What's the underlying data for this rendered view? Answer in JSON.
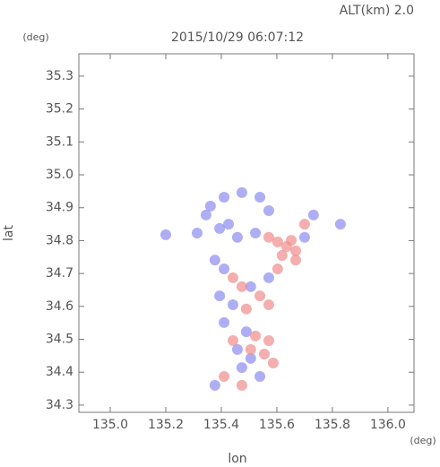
{
  "annotation": "ALT(km) 2.0",
  "chart_data": {
    "type": "scatter",
    "title": "2015/10/29 06:07:12",
    "x_label": "lon",
    "y_label": "lat",
    "x_unit": "(deg)",
    "y_unit": "(deg)",
    "xlim": [
      134.887,
      136.094
    ],
    "ylim": [
      34.278,
      35.368
    ],
    "xticks": [
      {
        "value": 135,
        "label": "135.0"
      },
      135.2,
      135.4,
      135.6,
      135.8,
      {
        "value": 136,
        "label": "136.0"
      }
    ],
    "yticks": [
      34.3,
      34.4,
      34.5,
      34.6,
      34.7,
      34.8,
      34.9,
      {
        "value": 35,
        "label": "35.0"
      },
      35.1,
      35.2,
      35.3
    ],
    "series": [
      {
        "color": "#8c8cf0",
        "x": [
          135.345,
          135.361,
          135.41,
          135.474,
          135.539,
          135.571,
          135.394,
          135.458,
          135.523,
          135.313,
          135.377,
          135.41,
          135.394,
          135.442,
          135.41,
          135.49,
          135.458,
          135.506,
          135.539,
          135.474,
          135.377,
          135.732,
          135.7,
          135.2,
          135.829,
          135.571,
          135.506,
          135.426
        ],
        "y": [
          34.878,
          34.905,
          34.932,
          34.946,
          34.932,
          34.891,
          34.837,
          34.81,
          34.823,
          34.823,
          34.741,
          34.714,
          34.632,
          34.605,
          34.551,
          34.523,
          34.469,
          34.442,
          34.387,
          34.414,
          34.36,
          34.878,
          34.81,
          34.818,
          34.85,
          34.687,
          34.66,
          34.85
        ]
      },
      {
        "color": "#f08c8c",
        "x": [
          135.603,
          135.635,
          135.668,
          135.619,
          135.652,
          135.571,
          135.474,
          135.539,
          135.49,
          135.442,
          135.571,
          135.523,
          135.571,
          135.555,
          135.587,
          135.506,
          135.474,
          135.41,
          135.442,
          135.603,
          135.7,
          135.668
        ],
        "y": [
          34.796,
          34.782,
          34.769,
          34.755,
          34.801,
          34.81,
          34.66,
          34.632,
          34.592,
          34.687,
          34.605,
          34.51,
          34.496,
          34.455,
          34.428,
          34.469,
          34.36,
          34.387,
          34.496,
          34.714,
          34.85,
          34.741
        ]
      }
    ]
  }
}
